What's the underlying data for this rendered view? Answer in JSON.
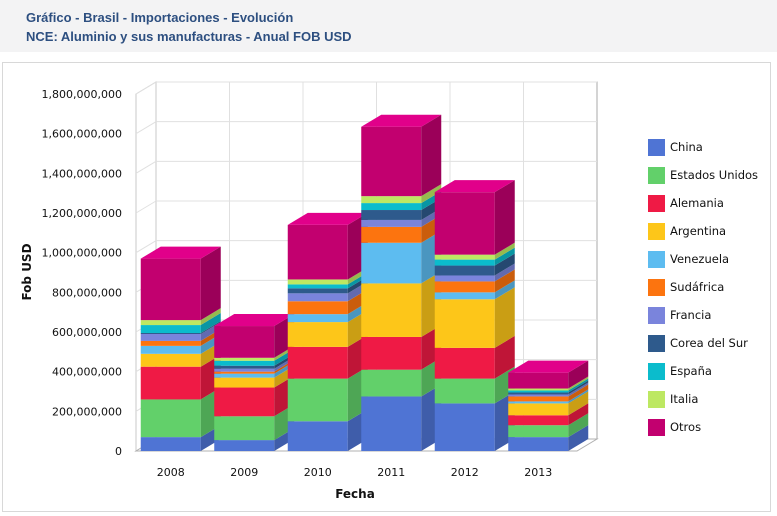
{
  "header": {
    "title_line1": "Gráfico - Brasil - Importaciones - Evolución",
    "title_line2": "NCE: Aluminio y sus manufacturas - Anual FOB USD"
  },
  "chart_data": {
    "type": "bar",
    "stacked": true,
    "style": "3d",
    "title": "",
    "xlabel": "Fecha",
    "ylabel": "Fob USD",
    "ylim": [
      0,
      1800000000
    ],
    "yticks": [
      0,
      200000000,
      400000000,
      600000000,
      800000000,
      1000000000,
      1200000000,
      1400000000,
      1600000000,
      1800000000
    ],
    "ytick_labels": [
      "0",
      "200,000,000",
      "400,000,000",
      "600,000,000",
      "800,000,000",
      "1,000,000,000",
      "1,200,000,000",
      "1,400,000,000",
      "1,600,000,000",
      "1,800,000,000"
    ],
    "grid": true,
    "legend_position": "right",
    "categories": [
      "2008",
      "2009",
      "2010",
      "2011",
      "2012",
      "2013"
    ],
    "series": [
      {
        "name": "China",
        "color": "#4f74d4",
        "values": [
          70000000,
          55000000,
          150000000,
          275000000,
          240000000,
          70000000
        ]
      },
      {
        "name": "Estados Unidos",
        "color": "#62d06a",
        "values": [
          190000000,
          120000000,
          215000000,
          135000000,
          125000000,
          60000000
        ]
      },
      {
        "name": "Alemania",
        "color": "#ef1a45",
        "values": [
          165000000,
          145000000,
          160000000,
          165000000,
          155000000,
          50000000
        ]
      },
      {
        "name": "Argentina",
        "color": "#fdc619",
        "values": [
          65000000,
          50000000,
          125000000,
          270000000,
          245000000,
          60000000
        ]
      },
      {
        "name": "Venezuela",
        "color": "#5dbcf0",
        "values": [
          40000000,
          20000000,
          40000000,
          205000000,
          35000000,
          10000000
        ]
      },
      {
        "name": "Sudáfrica",
        "color": "#fc740f",
        "values": [
          25000000,
          10000000,
          65000000,
          80000000,
          55000000,
          25000000
        ]
      },
      {
        "name": "Francia",
        "color": "#7a84dc",
        "values": [
          35000000,
          15000000,
          40000000,
          35000000,
          30000000,
          10000000
        ]
      },
      {
        "name": "Corea del Sur",
        "color": "#2e5a8c",
        "values": [
          5000000,
          15000000,
          25000000,
          50000000,
          50000000,
          10000000
        ]
      },
      {
        "name": "España",
        "color": "#0bbccc",
        "values": [
          40000000,
          25000000,
          20000000,
          35000000,
          30000000,
          10000000
        ]
      },
      {
        "name": "Italia",
        "color": "#bde862",
        "values": [
          25000000,
          15000000,
          25000000,
          35000000,
          25000000,
          10000000
        ]
      },
      {
        "name": "Otros",
        "color": "#c2006f",
        "values": [
          310000000,
          160000000,
          275000000,
          350000000,
          315000000,
          80000000
        ]
      }
    ]
  }
}
